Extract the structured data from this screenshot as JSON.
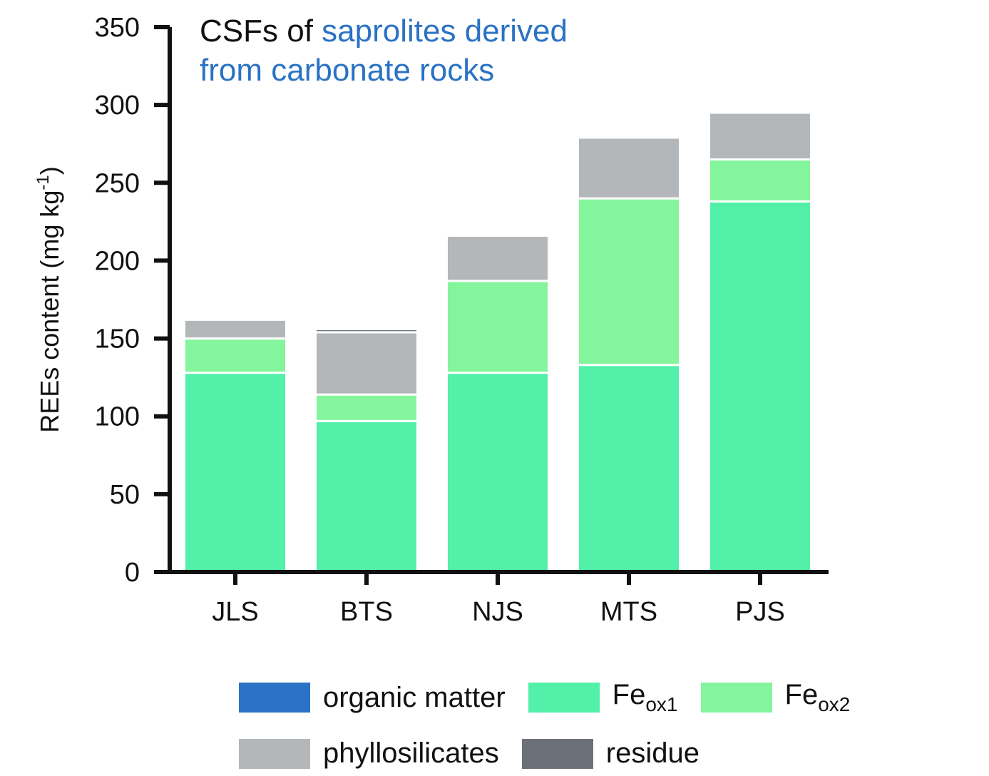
{
  "chart_data": {
    "type": "bar",
    "stacked": true,
    "title": "CSFs of saprolites derived from carbonate rocks",
    "title_parts": {
      "part1": "CSFs of ",
      "part2": "saprolites derived",
      "line2": "from carbonate rocks"
    },
    "ylabel": "REEs content (mg kg",
    "ylabel_sup": "-1",
    "ylabel_close": ")",
    "xlabel": "",
    "ylim": [
      0,
      350
    ],
    "yticks": [
      "0",
      "50",
      "100",
      "150",
      "200",
      "250",
      "300",
      "350"
    ],
    "categories": [
      "JLS",
      "BTS",
      "NJS",
      "MTS",
      "PJS"
    ],
    "series": [
      {
        "name": "organic matter",
        "color": "#2b73c6",
        "values": [
          0,
          0,
          0,
          0,
          0
        ]
      },
      {
        "name": "Fe",
        "name_sub": "ox1",
        "color": "#52f0a8",
        "values": [
          128,
          97,
          128,
          133,
          238
        ]
      },
      {
        "name": "Fe",
        "name_sub": "ox2",
        "color": "#84f59c",
        "values": [
          22,
          17,
          59,
          107,
          27
        ]
      },
      {
        "name": "phyllosilicates",
        "color": "#b3b7b9",
        "values": [
          12,
          40,
          29,
          39,
          30
        ]
      },
      {
        "name": "residue",
        "color": "#6c7078",
        "values": [
          0,
          2,
          0,
          0,
          0
        ]
      }
    ],
    "legend_position": "bottom",
    "grid": false,
    "colors": {
      "title_accent": "#2a72c4",
      "axis": "#111111"
    }
  }
}
